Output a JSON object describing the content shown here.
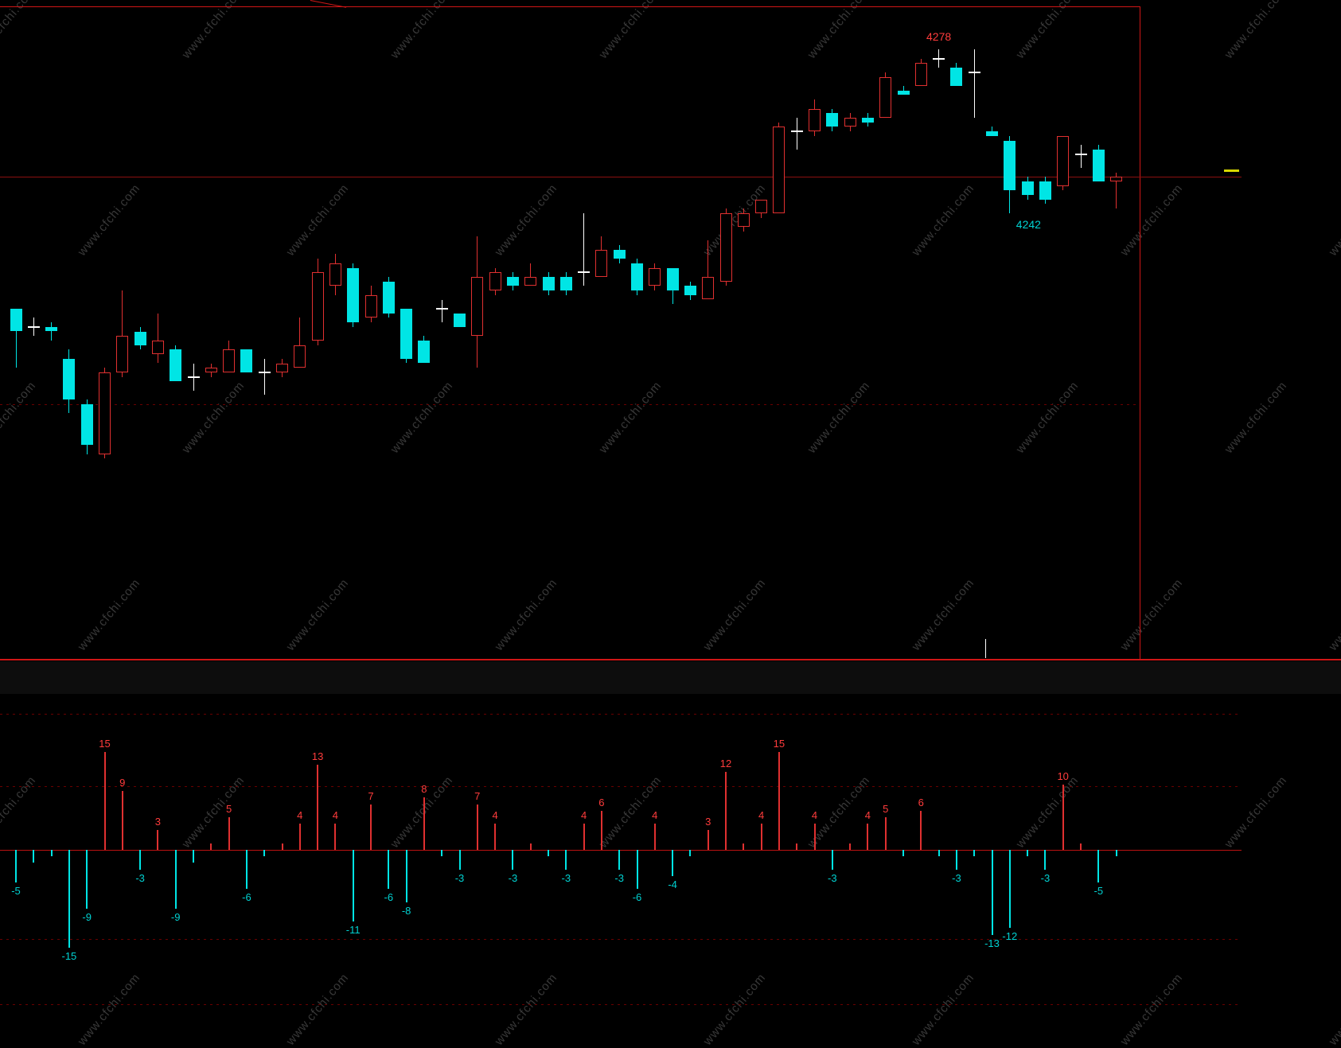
{
  "watermark": {
    "text": "www.cfchi.com"
  },
  "colors": {
    "up": "#e03030",
    "down": "#00e5e5",
    "doji": "#ffffff",
    "up_label": "#ff3c3c",
    "down_label": "#00d2d2",
    "border": "#d01616",
    "grid": "#6a0000",
    "grid_strong": "#8c0f0f",
    "zero": "#bb1111",
    "marker": "#d8d800",
    "watermark": "#383838"
  },
  "annotations": {
    "high": {
      "text": "4278",
      "candle_index": 52
    },
    "low": {
      "text": "4242",
      "candle_index": 56
    }
  },
  "chart_data": [
    {
      "type": "candlestick",
      "title": "",
      "ylim": [
        4144.5,
        4287.5
      ],
      "gridlines": [
        4250,
        4200
      ],
      "legend": "none",
      "candles": [
        [
          4221,
          4221,
          4208,
          4216,
          "d"
        ],
        [
          4217,
          4219,
          4215,
          4217,
          "j"
        ],
        [
          4217,
          4218,
          4214,
          4216,
          "d"
        ],
        [
          4210,
          4212,
          4198,
          4201,
          "d"
        ],
        [
          4200,
          4201,
          4189,
          4191,
          "d"
        ],
        [
          4189,
          4208,
          4188,
          4207,
          "u"
        ],
        [
          4207,
          4225,
          4206,
          4215,
          "u"
        ],
        [
          4216,
          4217,
          4212,
          4213,
          "d"
        ],
        [
          4211,
          4220,
          4209,
          4214,
          "u"
        ],
        [
          4212,
          4213,
          4205,
          4205,
          "d"
        ],
        [
          4206,
          4209,
          4203,
          4206,
          "j"
        ],
        [
          4207,
          4209,
          4206,
          4208,
          "u"
        ],
        [
          4207,
          4214,
          4207,
          4212,
          "u"
        ],
        [
          4212,
          4212,
          4207,
          4207,
          "d"
        ],
        [
          4207,
          4210,
          4202,
          4207,
          "j"
        ],
        [
          4207,
          4210,
          4206,
          4209,
          "u"
        ],
        [
          4208,
          4219,
          4208,
          4213,
          "u"
        ],
        [
          4214,
          4232,
          4213,
          4229,
          "u"
        ],
        [
          4226,
          4233,
          4224,
          4231,
          "u"
        ],
        [
          4230,
          4231,
          4217,
          4218,
          "d"
        ],
        [
          4219,
          4226,
          4218,
          4224,
          "u"
        ],
        [
          4227,
          4228,
          4219,
          4220,
          "d"
        ],
        [
          4221,
          4221,
          4209,
          4210,
          "d"
        ],
        [
          4214,
          4215,
          4209,
          4209,
          "d"
        ],
        [
          4221,
          4223,
          4218,
          4221,
          "j"
        ],
        [
          4220,
          4220,
          4217,
          4217,
          "d"
        ],
        [
          4215,
          4237,
          4208,
          4228,
          "u"
        ],
        [
          4225,
          4230,
          4224,
          4229,
          "u"
        ],
        [
          4228,
          4229,
          4225,
          4226,
          "d"
        ],
        [
          4226,
          4231,
          4226,
          4228,
          "u"
        ],
        [
          4228,
          4229,
          4224,
          4225,
          "d"
        ],
        [
          4228,
          4229,
          4224,
          4225,
          "d"
        ],
        [
          4229,
          4242,
          4226,
          4229,
          "j"
        ],
        [
          4228,
          4237,
          4228,
          4234,
          "u"
        ],
        [
          4234,
          4235,
          4231,
          4232,
          "d"
        ],
        [
          4231,
          4232,
          4224,
          4225,
          "d"
        ],
        [
          4226,
          4231,
          4225,
          4230,
          "u"
        ],
        [
          4230,
          4230,
          4222,
          4225,
          "d"
        ],
        [
          4226,
          4227,
          4223,
          4224,
          "d"
        ],
        [
          4223,
          4236,
          4223,
          4228,
          "u"
        ],
        [
          4227,
          4243,
          4226,
          4242,
          "u"
        ],
        [
          4239,
          4243,
          4238,
          4242,
          "u"
        ],
        [
          4242,
          4245,
          4241,
          4245,
          "u"
        ],
        [
          4242,
          4262,
          4242,
          4261,
          "u"
        ],
        [
          4260,
          4263,
          4256,
          4260,
          "j"
        ],
        [
          4260,
          4267,
          4259,
          4265,
          "u"
        ],
        [
          4264,
          4265,
          4260,
          4261,
          "d"
        ],
        [
          4261,
          4264,
          4260,
          4263,
          "u"
        ],
        [
          4263,
          4264,
          4261,
          4262,
          "d"
        ],
        [
          4263,
          4273,
          4263,
          4272,
          "u"
        ],
        [
          4269,
          4270,
          4268,
          4268,
          "d"
        ],
        [
          4270,
          4276,
          4270,
          4275,
          "u"
        ],
        [
          4276,
          4278,
          4274,
          4276,
          "j"
        ],
        [
          4274,
          4275,
          4270,
          4270,
          "d"
        ],
        [
          4273,
          4278,
          4263,
          4273,
          "j"
        ],
        [
          4260,
          4261,
          4259,
          4259,
          "d"
        ],
        [
          4258,
          4259,
          4242,
          4247,
          "d"
        ],
        [
          4249,
          4250,
          4245,
          4246,
          "d"
        ],
        [
          4249,
          4250,
          4244,
          4245,
          "d"
        ],
        [
          4248,
          4259,
          4247,
          4259,
          "u"
        ],
        [
          4255,
          4257,
          4252,
          4255,
          "j"
        ],
        [
          4256,
          4257,
          4249,
          4249,
          "d"
        ],
        [
          4249,
          4251,
          4243,
          4250,
          "u"
        ]
      ]
    },
    {
      "type": "bar",
      "title": "",
      "ylim": [
        -24,
        24
      ],
      "label_threshold": 3,
      "values": [
        -5,
        -2,
        -1,
        -15,
        -9,
        15,
        9,
        -3,
        3,
        -9,
        -2,
        1,
        5,
        -6,
        -1,
        1,
        4,
        13,
        4,
        -11,
        7,
        -6,
        -8,
        8,
        -1,
        -3,
        7,
        4,
        -3,
        1,
        -1,
        -3,
        4,
        6,
        -3,
        -6,
        4,
        -4,
        -1,
        3,
        12,
        1,
        4,
        15,
        1,
        4,
        -3,
        1,
        4,
        5,
        -1,
        6,
        -1,
        -3,
        -1,
        -13,
        -12,
        -1,
        -3,
        10,
        1,
        -5,
        -1
      ]
    }
  ]
}
